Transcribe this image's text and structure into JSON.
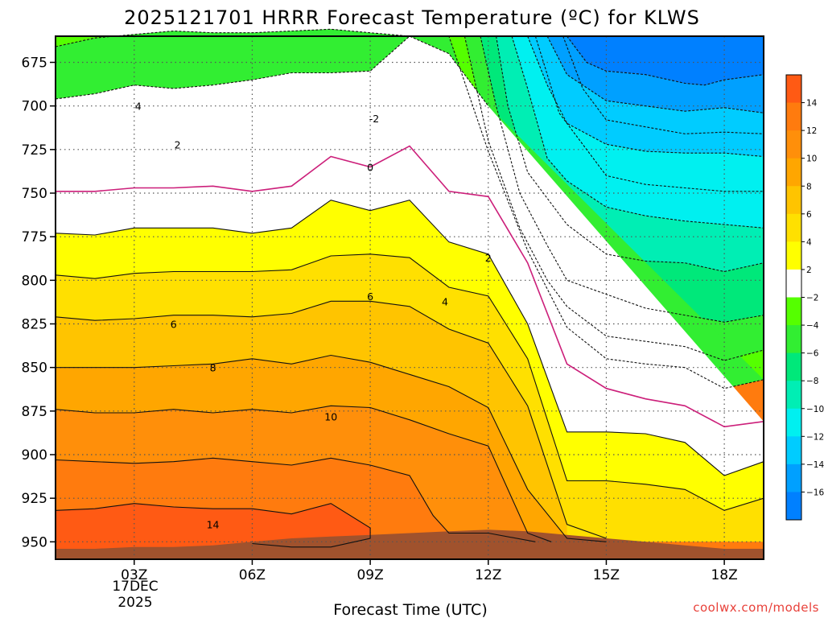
{
  "chart_data": {
    "type": "filled-contour",
    "title": "2025121701 HRRR Forecast Temperature (ºC) for KLWS",
    "xlabel": "Forecast Time (UTC)",
    "x_ticks": [
      "03Z",
      "06Z",
      "09Z",
      "12Z",
      "15Z",
      "18Z"
    ],
    "x_date_label": [
      "17DEC",
      "2025"
    ],
    "x_range_hours": [
      1,
      19
    ],
    "y_ticks": [
      675,
      700,
      725,
      750,
      775,
      800,
      825,
      850,
      875,
      900,
      925,
      950
    ],
    "y_range_hpa": [
      660,
      960
    ],
    "y_reversed": true,
    "grid": true,
    "colorbar": {
      "labels": [
        "14",
        "12",
        "10",
        "8",
        "6",
        "4",
        "2",
        "-2",
        "-4",
        "-6",
        "-8",
        "-10",
        "-12",
        "-14",
        "-16"
      ],
      "colors": [
        "#ff5a14",
        "#ff7b0e",
        "#ff8f0a",
        "#ffa600",
        "#ffc400",
        "#ffe000",
        "#ffff00",
        "#ffffff",
        "#55ff00",
        "#32ee32",
        "#00e87a",
        "#00eeb4",
        "#00f0f0",
        "#00ccff",
        "#00a0ff",
        "#0080ff"
      ]
    },
    "contour_labels": [
      "4",
      "2",
      "-2",
      "0",
      "2",
      "4",
      "6",
      "6",
      "8",
      "10",
      "14"
    ],
    "terrain_color": "#a0522d",
    "credit": "coolwx.com/models"
  }
}
